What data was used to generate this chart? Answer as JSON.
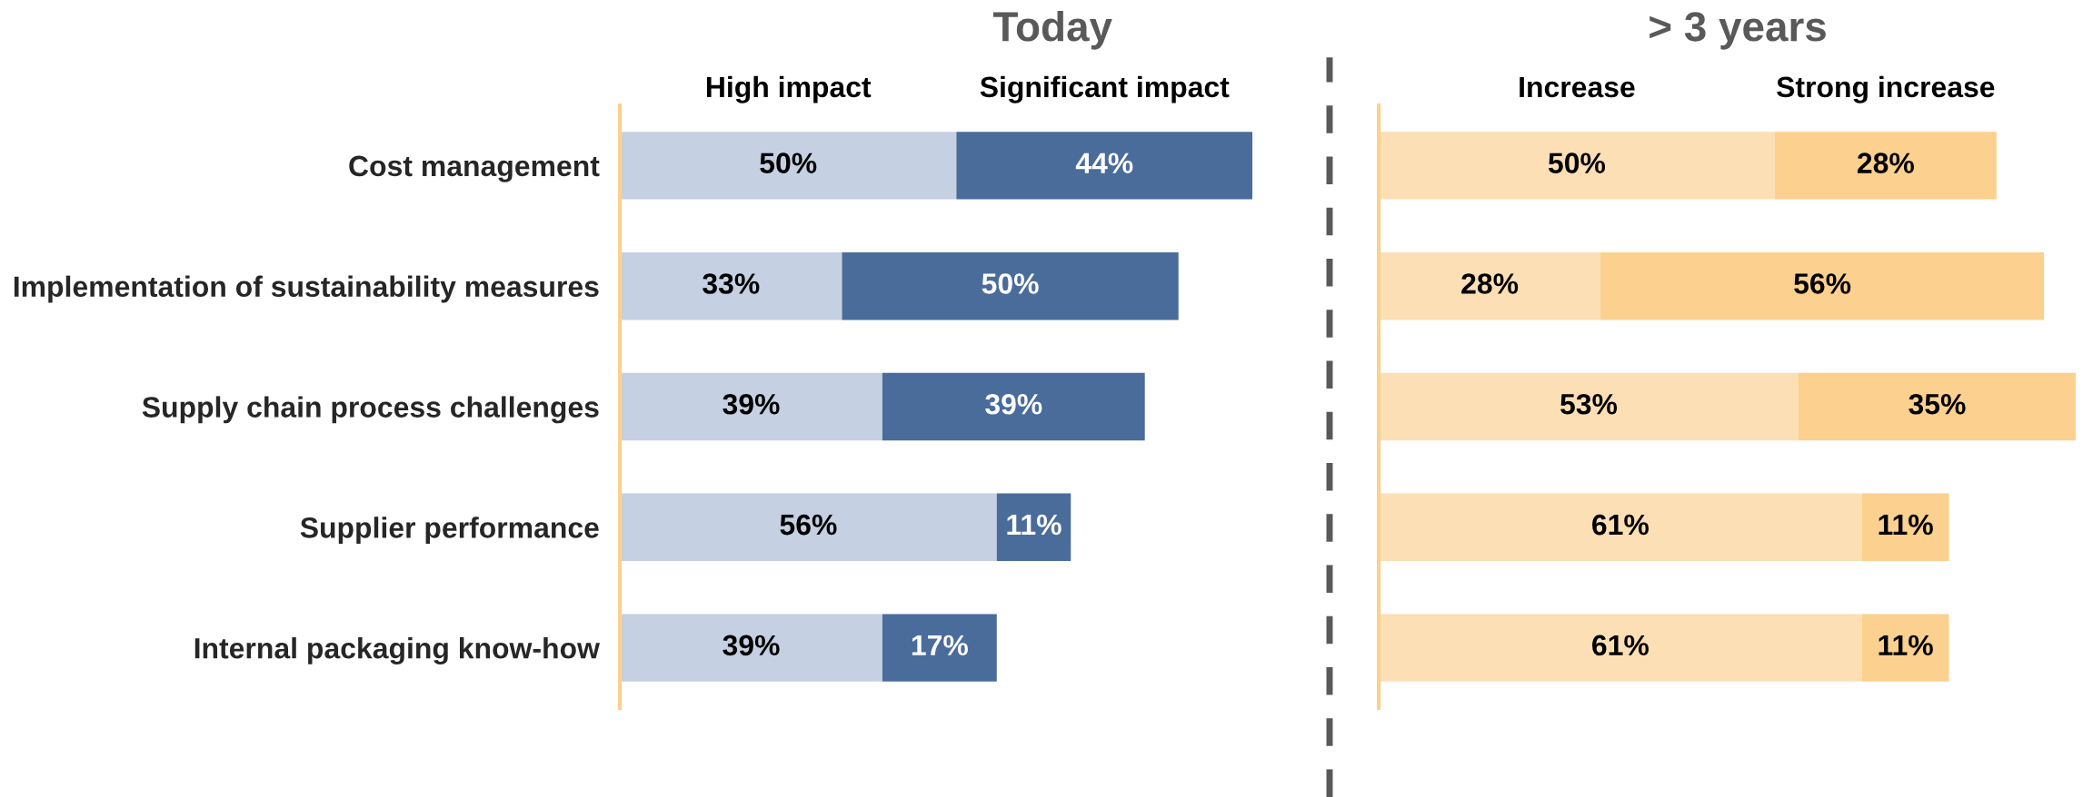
{
  "chart_data": [
    {
      "type": "bar",
      "orientation": "horizontal",
      "stacked": true,
      "title": "Today",
      "categories": [
        "Cost management",
        "Implementation of sustainability measures",
        "Supply chain process challenges",
        "Supplier performance",
        "Internal packaging know-how"
      ],
      "series": [
        {
          "name": "High impact",
          "color": "#c5d0e2",
          "values": [
            50,
            33,
            39,
            56,
            39
          ],
          "value_labels": [
            "50%",
            "33%",
            "39%",
            "56%",
            "39%"
          ]
        },
        {
          "name": "Significant impact",
          "color": "#4a6c9b",
          "values": [
            44,
            50,
            39,
            11,
            17
          ],
          "value_labels": [
            "44%",
            "50%",
            "39%",
            "11%",
            "17%"
          ]
        }
      ],
      "tick_labels": "y"
    },
    {
      "type": "bar",
      "orientation": "horizontal",
      "stacked": true,
      "title": "> 3 years",
      "categories": [
        null,
        null,
        null,
        null,
        null
      ],
      "series": [
        {
          "name": "Increase",
          "color": "#fcdfb5",
          "values": [
            50,
            28,
            53,
            61,
            61
          ],
          "value_labels": [
            "50%",
            "28%",
            "53%",
            "61%",
            "61%"
          ]
        },
        {
          "name": "Strong increase",
          "color": "#fcd08e",
          "values": [
            28,
            56,
            35,
            11,
            11
          ],
          "value_labels": [
            "28%",
            "56%",
            "35%",
            "11%",
            "11%"
          ]
        }
      ]
    }
  ]
}
